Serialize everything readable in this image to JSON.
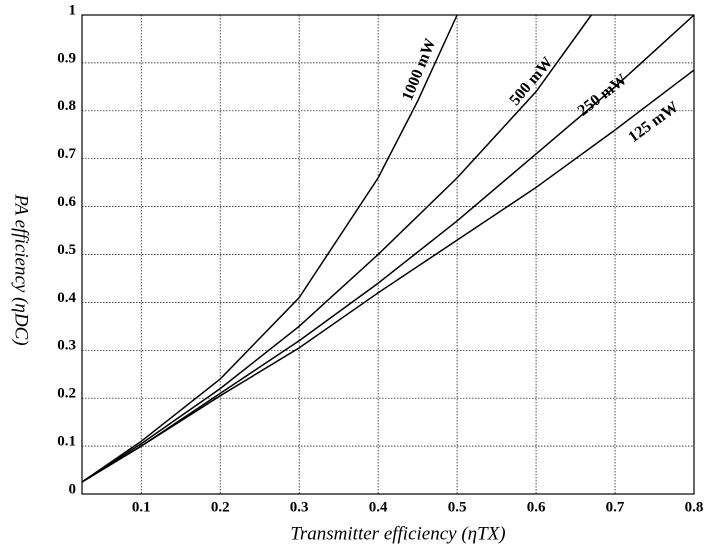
{
  "chart_data": {
    "type": "line",
    "xlabel": "Transmitter efficiency (ηTX)",
    "ylabel": "PA efficiency (ηDC)",
    "series": [
      {
        "name": "1000 mW",
        "color": "#000000",
        "x": [
          0.025,
          0.1,
          0.2,
          0.3,
          0.4,
          0.45,
          0.5
        ],
        "values": [
          0.025,
          0.11,
          0.24,
          0.41,
          0.66,
          0.82,
          1.0
        ]
      },
      {
        "name": "500 mW",
        "color": "#000000",
        "x": [
          0.025,
          0.1,
          0.2,
          0.3,
          0.4,
          0.5,
          0.6,
          0.67
        ],
        "values": [
          0.025,
          0.105,
          0.22,
          0.35,
          0.5,
          0.66,
          0.84,
          1.0
        ]
      },
      {
        "name": "250 mW",
        "color": "#000000",
        "x": [
          0.025,
          0.1,
          0.2,
          0.3,
          0.4,
          0.5,
          0.6,
          0.7,
          0.8
        ],
        "values": [
          0.025,
          0.1,
          0.21,
          0.32,
          0.44,
          0.57,
          0.71,
          0.85,
          1.0
        ]
      },
      {
        "name": "125 mW",
        "color": "#000000",
        "x": [
          0.025,
          0.1,
          0.2,
          0.3,
          0.4,
          0.5,
          0.6,
          0.7,
          0.8
        ],
        "values": [
          0.025,
          0.1,
          0.205,
          0.305,
          0.42,
          0.53,
          0.64,
          0.76,
          0.885
        ]
      }
    ],
    "xlim": [
      0.025,
      0.8
    ],
    "ylim": [
      0,
      1
    ],
    "xticks": [
      0.1,
      0.2,
      0.3,
      0.4,
      0.5,
      0.6,
      0.7,
      0.8
    ],
    "yticks": [
      0,
      0.1,
      0.2,
      0.3,
      0.4,
      0.5,
      0.6,
      0.7,
      0.8,
      0.9,
      1
    ],
    "grid": true
  }
}
